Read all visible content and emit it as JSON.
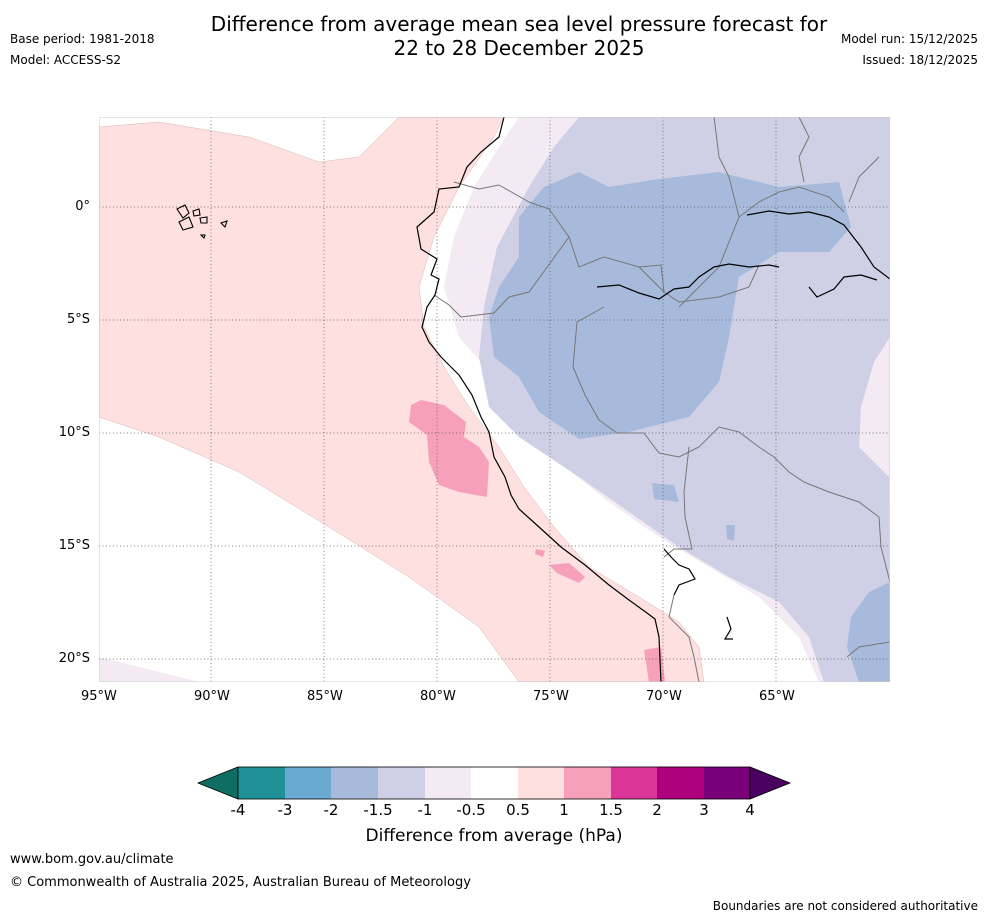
{
  "header": {
    "title_line1": "Difference from average mean sea level pressure forecast for",
    "title_line2": "22 to 28 December 2025",
    "base_period": "Base period: 1981-2018",
    "model": "Model: ACCESS-S2",
    "model_run": "Model run: 15/12/2025",
    "issued": "Issued: 18/12/2025"
  },
  "map": {
    "lon_labels": [
      "95°W",
      "90°W",
      "85°W",
      "80°W",
      "75°W",
      "70°W",
      "65°W"
    ],
    "lat_labels": [
      "0°",
      "5°S",
      "10°S",
      "15°S",
      "20°S"
    ]
  },
  "colorbar": {
    "colors": [
      "#0f6e63",
      "#1f9196",
      "#6aa9d2",
      "#a7badb",
      "#cfd0e5",
      "#f3eaf3",
      "#ffffff",
      "#fde0df",
      "#f6a0bb",
      "#db3598",
      "#ae007b",
      "#7a007a",
      "#4a0060"
    ],
    "tick_labels": [
      "-4",
      "-3",
      "-2",
      "-1.5",
      "-1",
      "-0.5",
      "0.5",
      "1",
      "1.5",
      "2",
      "3",
      "4"
    ],
    "label": "Difference from average (hPa)"
  },
  "footer": {
    "website": "www.bom.gov.au/climate",
    "copyright": "© Commonwealth of Australia 2025, Australian Bureau of Meteorology",
    "disclaimer": "Boundaries are not considered authoritative"
  }
}
